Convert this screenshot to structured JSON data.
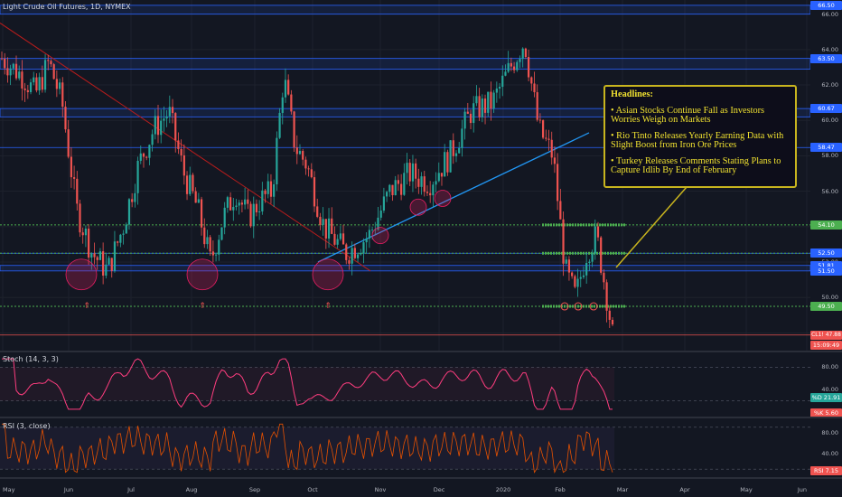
{
  "chart": {
    "symbol_title": "Light Crude Oil Futures, 1D, NYMEX"
  },
  "colors": {
    "background": "#131722",
    "bull": "#26a69a",
    "bear": "#ef5350",
    "trendline_down": "#b71c1c",
    "trendline_up": "#2196f3",
    "blue_zone": "#2962ff",
    "green_level": "#4caf50",
    "oscillator": "#ff3d7f",
    "rsi": "#e65100",
    "headline_border": "#c8b41e",
    "headline_text": "#f0e130"
  },
  "price_axis": {
    "ticks": [
      "66.00",
      "64.00",
      "62.00",
      "60.00",
      "58.00",
      "56.00",
      "54.00",
      "52.00",
      "50.00"
    ],
    "tags": [
      {
        "label": "66.50",
        "color": "#2962ff"
      },
      {
        "label": "63.50",
        "color": "#2962ff"
      },
      {
        "label": "60.67",
        "color": "#2962ff"
      },
      {
        "label": "58.47",
        "color": "#2962ff"
      },
      {
        "label": "54.10",
        "color": "#4caf50"
      },
      {
        "label": "52.50",
        "color": "#2962ff"
      },
      {
        "label": "51.81",
        "color": "#2962ff"
      },
      {
        "label": "51.50",
        "color": "#2962ff"
      },
      {
        "label": "49.50",
        "color": "#4caf50"
      },
      {
        "label": "CL1! 47.88",
        "color": "#ef5350"
      },
      {
        "label": "15:09:49",
        "color": "#ef5350"
      }
    ]
  },
  "stoch": {
    "title": "Stoch (14, 3, 3)",
    "ticks": [
      "80.00",
      "40.00"
    ],
    "tags": [
      {
        "label": "%D 21.91",
        "color": "#26a69a"
      },
      {
        "label": "%K 5.60",
        "color": "#ef5350"
      }
    ]
  },
  "rsi": {
    "title": "RSI (3, close)",
    "ticks": [
      "80.00",
      "40.00"
    ],
    "tags": [
      {
        "label": "RSI 7.15",
        "color": "#ef5350"
      }
    ]
  },
  "time_axis": {
    "labels": [
      "May",
      "Jun",
      "Jul",
      "Aug",
      "Sep",
      "Oct",
      "Nov",
      "Dec",
      "2020",
      "Feb",
      "Mar",
      "Apr",
      "May",
      "Jun"
    ]
  },
  "headlines": {
    "title": "Headlines:",
    "items": [
      "• Asian Stocks Continue Fall as Investors Worries Weigh on Markets",
      "• Rio Tinto Releases Yearly Earning Data with Slight Boost from Iron Ore Prices",
      "• Turkey Releases Comments Stating Plans to Capture Idlib By End of February"
    ]
  },
  "chart_data": {
    "type": "candlestick",
    "title": "Light Crude Oil Futures, 1D, NYMEX",
    "last_price": 47.88,
    "y_range": [
      47.0,
      66.8
    ],
    "levels": [
      66.5,
      63.5,
      60.67,
      58.47,
      54.1,
      52.5,
      51.81,
      51.5,
      49.5
    ],
    "price_path": [
      [
        "May",
        63.5
      ],
      [
        "May",
        62.5
      ],
      [
        "May",
        61.5
      ],
      [
        "May",
        63.3
      ],
      [
        "May",
        61.0
      ],
      [
        "Jun",
        55.0
      ],
      [
        "Jun",
        52.5
      ],
      [
        "Jun",
        51.5
      ],
      [
        "Jun",
        54.0
      ],
      [
        "Jul",
        57.5
      ],
      [
        "Jul",
        59.5
      ],
      [
        "Jul",
        60.5
      ],
      [
        "Jul",
        57.0
      ],
      [
        "Aug",
        55.0
      ],
      [
        "Aug",
        52.0
      ],
      [
        "Aug",
        54.5
      ],
      [
        "Aug",
        56.0
      ],
      [
        "Aug",
        54.5
      ],
      [
        "Sep",
        55.5
      ],
      [
        "Sep",
        56.0
      ],
      [
        "Sep",
        62.5
      ],
      [
        "Sep",
        58.5
      ],
      [
        "Sep",
        57.5
      ],
      [
        "Oct",
        54.0
      ],
      [
        "Oct",
        52.5
      ],
      [
        "Oct",
        53.5
      ],
      [
        "Nov",
        56.0
      ],
      [
        "Nov",
        57.0
      ],
      [
        "Nov",
        56.5
      ],
      [
        "Dec",
        58.0
      ],
      [
        "Dec",
        60.5
      ],
      [
        "Dec",
        61.0
      ],
      [
        "2020",
        63.0
      ],
      [
        "2020",
        64.5
      ],
      [
        "2020",
        59.5
      ],
      [
        "2020",
        58.0
      ],
      [
        "Feb",
        51.5
      ],
      [
        "Feb",
        50.0
      ],
      [
        "Feb",
        52.5
      ],
      [
        "Feb",
        53.5
      ],
      [
        "Feb",
        50.0
      ],
      [
        "Feb",
        47.88
      ]
    ],
    "stoch_last": {
      "d": 21.91,
      "k": 5.6
    },
    "rsi_last": 7.15,
    "x_labels": [
      "May",
      "Jun",
      "Jul",
      "Aug",
      "Sep",
      "Oct",
      "Nov",
      "Dec",
      "2020",
      "Feb",
      "Mar",
      "Apr",
      "May",
      "Jun"
    ]
  }
}
